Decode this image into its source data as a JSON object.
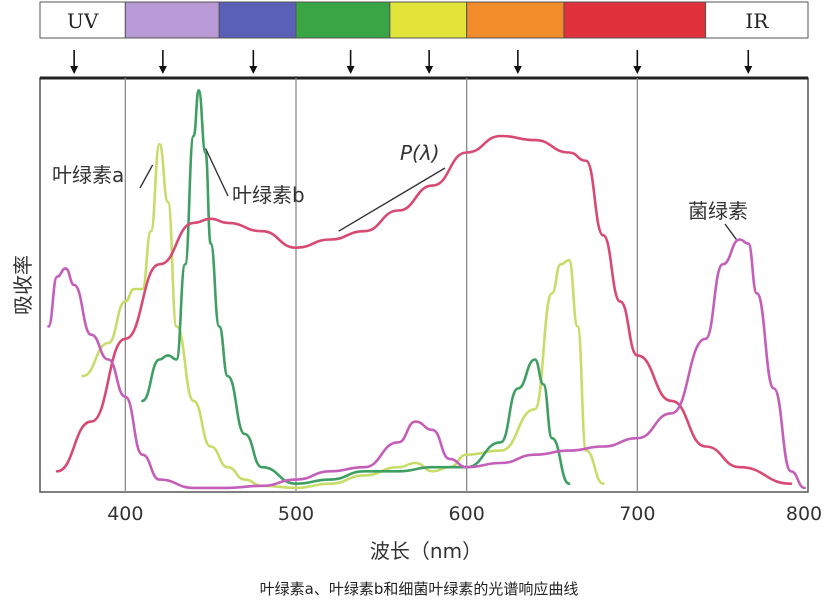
{
  "chart_data": {
    "type": "line",
    "title": "",
    "caption": "叶绿素a、叶绿素b和细菌叶绿素的光谱响应曲线",
    "xlabel": "波长（nm）",
    "ylabel": "吸收率",
    "xlim": [
      350,
      800
    ],
    "ylim": [
      0,
      1
    ],
    "x_ticks": [
      400,
      500,
      600,
      700,
      800
    ],
    "grid": "vertical",
    "spectrum_bands": [
      {
        "label": "UV",
        "from": 350,
        "to": 400,
        "color": "#ffffff"
      },
      {
        "label": "",
        "from": 400,
        "to": 455,
        "color": "#b79ad6"
      },
      {
        "label": "",
        "from": 455,
        "to": 500,
        "color": "#5a5fb8"
      },
      {
        "label": "",
        "from": 500,
        "to": 555,
        "color": "#3aa545"
      },
      {
        "label": "",
        "from": 555,
        "to": 600,
        "color": "#e2e43a"
      },
      {
        "label": "",
        "from": 600,
        "to": 657,
        "color": "#f28b2a"
      },
      {
        "label": "",
        "from": 657,
        "to": 740,
        "color": "#e0303b"
      },
      {
        "label": "IR",
        "from": 740,
        "to": 800,
        "color": "#ffffff"
      }
    ],
    "arrow_wavelengths": [
      370,
      422,
      475,
      532,
      578,
      630,
      700,
      765
    ],
    "series": [
      {
        "name": "叶绿素a",
        "color": "#c8dc6a",
        "x": [
          375,
          390,
          400,
          405,
          410,
          415,
          420,
          425,
          430,
          440,
          450,
          460,
          470,
          480,
          500,
          520,
          540,
          560,
          570,
          580,
          590,
          600,
          620,
          640,
          650,
          655,
          660,
          665,
          670,
          680
        ],
        "y": [
          0.28,
          0.36,
          0.46,
          0.49,
          0.49,
          0.63,
          0.84,
          0.7,
          0.4,
          0.22,
          0.11,
          0.06,
          0.03,
          0.015,
          0.01,
          0.02,
          0.04,
          0.06,
          0.07,
          0.05,
          0.06,
          0.09,
          0.1,
          0.2,
          0.48,
          0.55,
          0.56,
          0.4,
          0.1,
          0.02
        ]
      },
      {
        "name": "叶绿素b",
        "color": "#3f9f63",
        "x": [
          410,
          420,
          425,
          430,
          435,
          440,
          443,
          447,
          450,
          455,
          460,
          470,
          480,
          500,
          520,
          540,
          560,
          580,
          600,
          620,
          630,
          640,
          645,
          650,
          660
        ],
        "y": [
          0.22,
          0.32,
          0.33,
          0.32,
          0.55,
          0.86,
          0.97,
          0.82,
          0.6,
          0.4,
          0.28,
          0.14,
          0.06,
          0.02,
          0.03,
          0.05,
          0.05,
          0.06,
          0.06,
          0.12,
          0.25,
          0.32,
          0.26,
          0.13,
          0.02
        ]
      },
      {
        "name": "P(λ)",
        "color": "#d64a73",
        "x": [
          360,
          380,
          400,
          420,
          440,
          450,
          460,
          480,
          500,
          520,
          540,
          560,
          580,
          600,
          620,
          640,
          660,
          670,
          680,
          690,
          700,
          720,
          740,
          760,
          790
        ],
        "y": [
          0.05,
          0.17,
          0.37,
          0.55,
          0.65,
          0.66,
          0.65,
          0.63,
          0.59,
          0.61,
          0.63,
          0.68,
          0.74,
          0.82,
          0.86,
          0.85,
          0.82,
          0.8,
          0.62,
          0.46,
          0.33,
          0.22,
          0.11,
          0.06,
          0.02
        ]
      },
      {
        "name": "菌绿素",
        "color": "#c35fb8",
        "x": [
          355,
          360,
          365,
          370,
          380,
          390,
          400,
          410,
          420,
          440,
          460,
          480,
          500,
          520,
          540,
          560,
          570,
          580,
          590,
          600,
          620,
          640,
          660,
          680,
          700,
          720,
          740,
          750,
          760,
          765,
          770,
          780,
          790,
          798
        ],
        "y": [
          0.4,
          0.52,
          0.54,
          0.5,
          0.38,
          0.32,
          0.23,
          0.09,
          0.03,
          0.01,
          0.01,
          0.015,
          0.03,
          0.05,
          0.06,
          0.12,
          0.17,
          0.15,
          0.08,
          0.06,
          0.07,
          0.09,
          0.1,
          0.11,
          0.13,
          0.19,
          0.37,
          0.55,
          0.61,
          0.6,
          0.48,
          0.25,
          0.05,
          0.01
        ]
      }
    ],
    "annotations": [
      {
        "text": "叶绿素a",
        "series": "叶绿素a"
      },
      {
        "text": "叶绿素b",
        "series": "叶绿素b"
      },
      {
        "text": "P(λ)",
        "series": "P(λ)"
      },
      {
        "text": "菌绿素",
        "series": "菌绿素"
      }
    ]
  }
}
